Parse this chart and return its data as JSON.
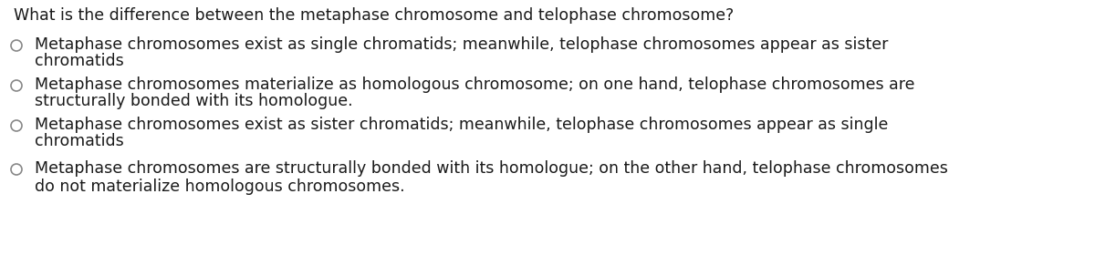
{
  "background_color": "#ffffff",
  "question": "What is the difference between the metaphase chromosome and telophase chromosome?",
  "question_fontsize": 12.5,
  "options": [
    {
      "line1": "Metaphase chromosomes exist as single chromatids; meanwhile, telophase chromosomes appear as sister",
      "line2": "chromatids"
    },
    {
      "line1": "Metaphase chromosomes materialize as homologous chromosome; on one hand, telophase chromosomes are",
      "line2": "structurally bonded with its homologue."
    },
    {
      "line1": "Metaphase chromosomes exist as sister chromatids; meanwhile, telophase chromosomes appear as single",
      "line2": "chromatids"
    },
    {
      "line1": "Metaphase chromosomes are structurally bonded with its homologue; on the other hand, telophase chromosomes",
      "line2": "do not materialize homologous chromosomes."
    }
  ],
  "option_fontsize": 12.5,
  "text_color": "#1a1a1a",
  "circle_color": "#888888",
  "fig_width": 12.0,
  "fig_height": 2.8,
  "dpi": 100
}
